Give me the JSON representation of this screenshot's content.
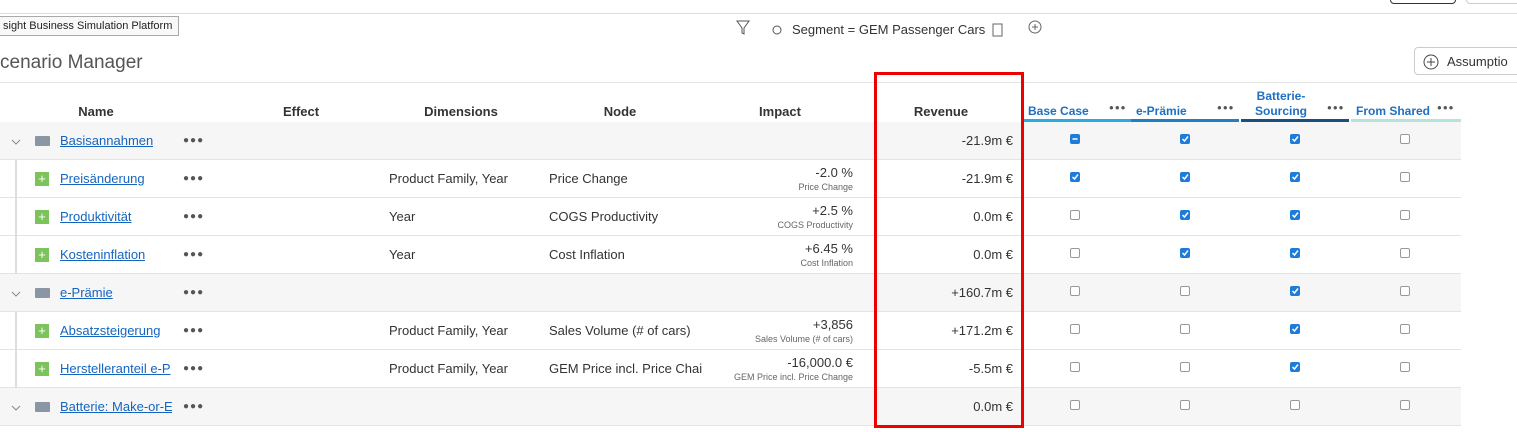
{
  "tooltip": "sight Business Simulation Platform",
  "filter": {
    "label": "Segment = GEM Passenger Cars"
  },
  "header": {
    "title": "cenario Manager",
    "button": "Assumptio"
  },
  "table": {
    "columns": [
      "Name",
      "Effect",
      "Dimensions",
      "Node",
      "Impact",
      "Revenue"
    ],
    "scenarios": [
      {
        "label": "Base Case",
        "color": "#29abe2"
      },
      {
        "label": "e-Prämie",
        "color": "#1e7fc6"
      },
      {
        "label": "Batterie-Sourcing",
        "color": "#1b4f7f"
      },
      {
        "label": "From Shared",
        "color": "#b5e3dc"
      }
    ],
    "rows": [
      {
        "kind": "group",
        "name": "Basisannahmen",
        "revenue": "-21.9m €",
        "checks": [
          "partial",
          "on",
          "on",
          "off"
        ]
      },
      {
        "kind": "item",
        "name": "Preisänderung",
        "dimensions": "Product Family, Year",
        "node": "Price Change",
        "impact": "-2.0 %",
        "impact_sub": "Price Change",
        "revenue": "-21.9m €",
        "checks": [
          "on",
          "on",
          "on",
          "off"
        ]
      },
      {
        "kind": "item",
        "name": "Produktivität",
        "dimensions": "Year",
        "node": "COGS Productivity",
        "impact": "+2.5 %",
        "impact_sub": "COGS Productivity",
        "revenue": "0.0m €",
        "checks": [
          "off",
          "on",
          "on",
          "off"
        ]
      },
      {
        "kind": "item",
        "name": "Kosteninflation",
        "dimensions": "Year",
        "node": "Cost Inflation",
        "impact": "+6.45 %",
        "impact_sub": "Cost Inflation",
        "revenue": "0.0m €",
        "checks": [
          "off",
          "on",
          "on",
          "off"
        ]
      },
      {
        "kind": "group",
        "name": "e-Prämie",
        "revenue": "+160.7m €",
        "checks": [
          "off",
          "off",
          "on",
          "off"
        ]
      },
      {
        "kind": "item",
        "name": "Absatzsteigerung",
        "dimensions": "Product Family, Year",
        "node": "Sales Volume (# of cars)",
        "impact": "+3,856",
        "impact_sub": "Sales Volume (# of cars)",
        "revenue": "+171.2m €",
        "checks": [
          "off",
          "off",
          "on",
          "off"
        ]
      },
      {
        "kind": "item",
        "name": "Herstelleranteil e-P",
        "dimensions": "Product Family, Year",
        "node": "GEM Price incl. Price Chai",
        "impact": "-16,000.0 €",
        "impact_sub": "GEM Price incl. Price Change",
        "revenue": "-5.5m €",
        "checks": [
          "off",
          "off",
          "on",
          "off"
        ]
      },
      {
        "kind": "group",
        "name": "Batterie: Make-or-E",
        "revenue": "0.0m €",
        "checks": [
          "off",
          "off",
          "off",
          "off"
        ]
      }
    ]
  }
}
